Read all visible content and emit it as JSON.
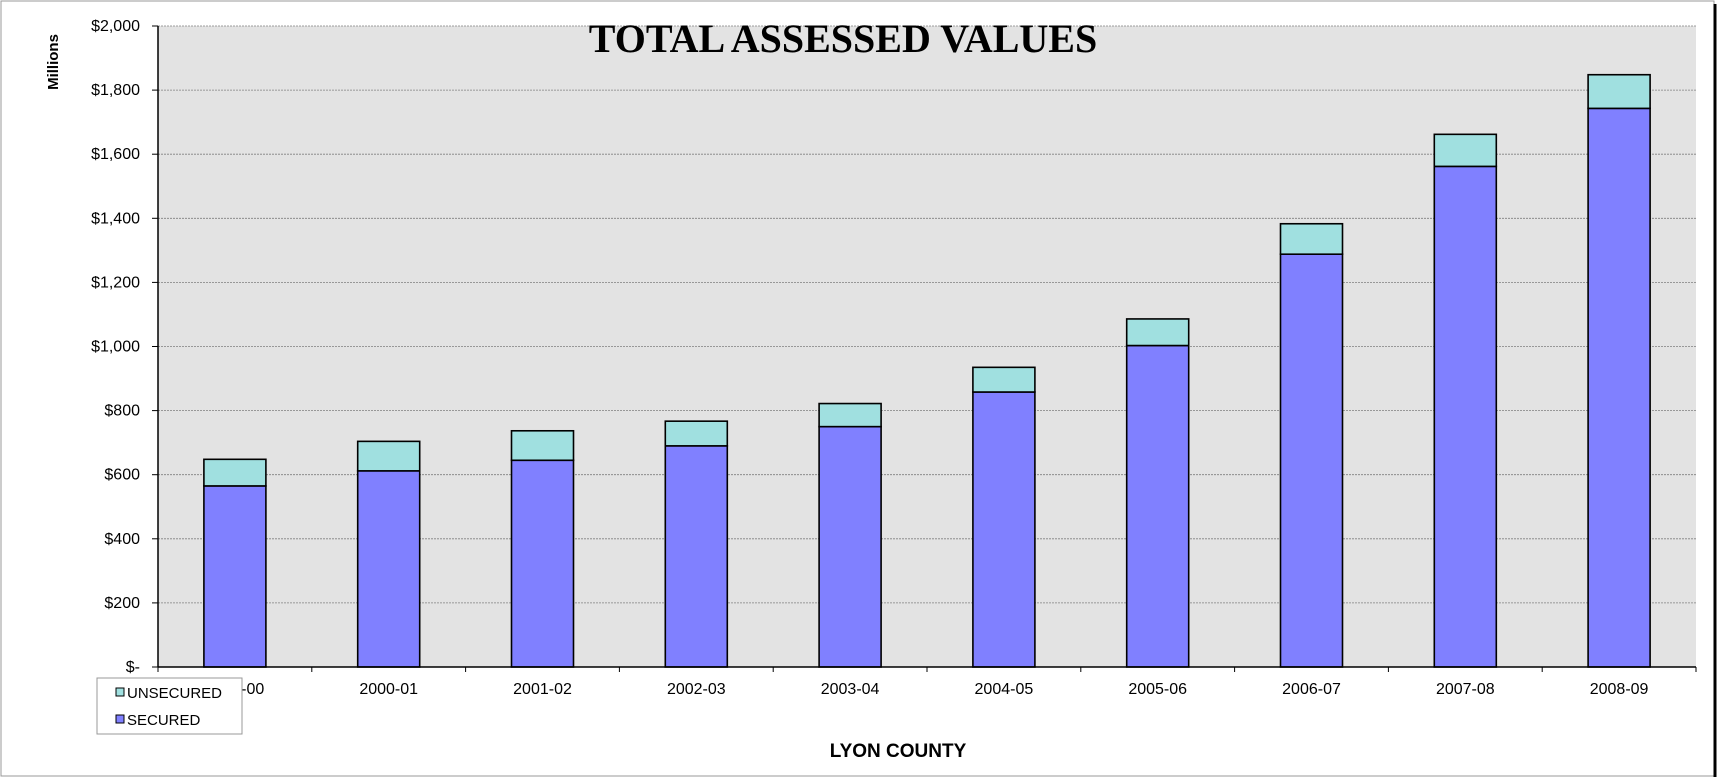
{
  "chart_data": {
    "type": "bar",
    "stacked": true,
    "title": "TOTAL ASSESSED VALUES",
    "xlabel": "LYON COUNTY",
    "ylabel": "Millions",
    "ylim": [
      0,
      2000
    ],
    "yticks": [
      0,
      200,
      400,
      600,
      800,
      1000,
      1200,
      1400,
      1600,
      1800,
      2000
    ],
    "ytick_labels": [
      "$-",
      "$200",
      "$400",
      "$600",
      "$800",
      "$1,000",
      "$1,200",
      "$1,400",
      "$1,600",
      "$1,800",
      "$2,000"
    ],
    "categories": [
      "1999-00",
      "2000-01",
      "2001-02",
      "2002-03",
      "2003-04",
      "2004-05",
      "2005-06",
      "2006-07",
      "2007-08",
      "2008-09"
    ],
    "series": [
      {
        "name": "SECURED",
        "color": "#8080ff",
        "values": [
          565,
          612,
          645,
          690,
          750,
          858,
          1003,
          1288,
          1562,
          1743
        ]
      },
      {
        "name": "UNSECURED",
        "color": "#a0e0e0",
        "values": [
          83,
          92,
          92,
          77,
          72,
          77,
          83,
          95,
          100,
          105
        ]
      }
    ],
    "legend": [
      "UNSECURED",
      "SECURED"
    ],
    "legend_position": "bottom-left",
    "grid": true,
    "plot_background": "#e3e3e3"
  }
}
